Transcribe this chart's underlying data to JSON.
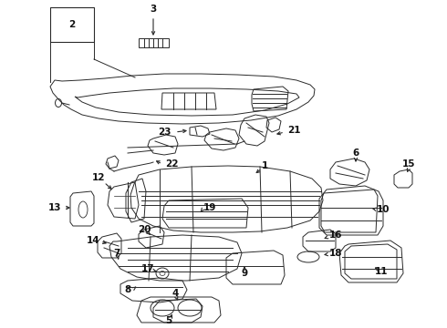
{
  "bg_color": "#ffffff",
  "line_color": "#2a2a2a",
  "lw": 0.7,
  "figsize": [
    4.9,
    3.6
  ],
  "dpi": 100,
  "label_fontsize": 7.5
}
